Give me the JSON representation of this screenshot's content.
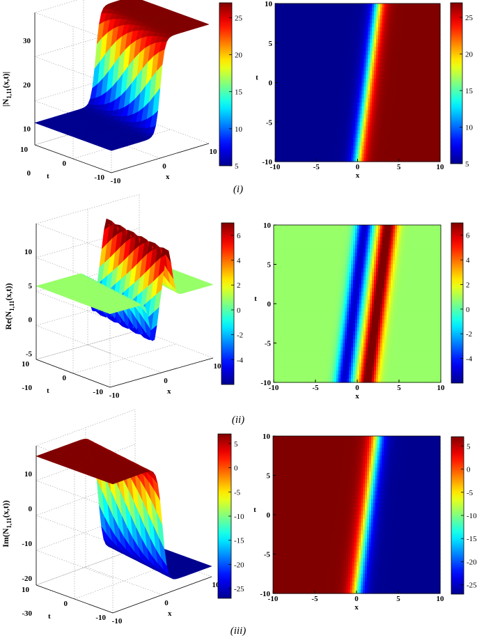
{
  "colors": {
    "jet": [
      "#00008f",
      "#0000ff",
      "#00ffff",
      "#ffff00",
      "#ff0000",
      "#800000"
    ],
    "axis": "#000000",
    "grid": "#9a9a9a"
  },
  "chart_data": [
    {
      "id": "i-surface",
      "type": "surface",
      "panel_caption": "(i)",
      "zlabel": "|N1,11(x,t)|",
      "zlabel_main": "|N",
      "zlabel_sub": "1,11",
      "zlabel_tail": "(x,t)|",
      "xlabel": "x",
      "ylabel": "t",
      "xlim": [
        -10,
        10
      ],
      "tlim": [
        -10,
        10
      ],
      "zlim": [
        0,
        30
      ],
      "zticks": [
        0,
        10,
        20,
        30
      ],
      "xticks": [
        -10,
        0,
        10
      ],
      "tticks": [
        -10,
        0,
        10
      ],
      "shape": "kink",
      "low_value": 5,
      "high_value": 27,
      "front_speed": 0.12,
      "colorbar": {
        "range": [
          5,
          27
        ],
        "ticks": [
          5,
          10,
          15,
          20,
          25
        ]
      }
    },
    {
      "id": "i-density",
      "type": "heatmap",
      "xlabel": "x",
      "ylabel": "t",
      "xlim": [
        -10,
        10
      ],
      "tlim": [
        -10,
        10
      ],
      "xticks": [
        -10,
        -5,
        0,
        5,
        10
      ],
      "tticks": [
        -10,
        -5,
        0,
        5,
        10
      ],
      "shape": "kink",
      "low_value": 5,
      "high_value": 27,
      "center_at_t_minus10": 0,
      "center_at_t_10": 2.5,
      "colorbar": {
        "range": [
          5,
          27
        ],
        "ticks": [
          5,
          10,
          15,
          20,
          25
        ]
      }
    },
    {
      "id": "ii-surface",
      "type": "surface",
      "panel_caption": "(ii)",
      "zlabel": "Re(N1,11(x,t))",
      "zlabel_main": "Re(N",
      "zlabel_sub": "1,11",
      "zlabel_tail": "(x,t))",
      "xlabel": "x",
      "ylabel": "t",
      "xlim": [
        -10,
        10
      ],
      "tlim": [
        -10,
        10
      ],
      "zlim": [
        -10,
        10
      ],
      "zticks": [
        -10,
        -5,
        0,
        5,
        10
      ],
      "xticks": [
        -10,
        0,
        10
      ],
      "tticks": [
        -10,
        0,
        10
      ],
      "shape": "bipolar",
      "background_value": 0.8,
      "peak_value": 7,
      "trough_value": -6,
      "colorbar": {
        "range": [
          -6,
          7
        ],
        "ticks": [
          -4,
          -2,
          0,
          2,
          4,
          6
        ]
      }
    },
    {
      "id": "ii-density",
      "type": "heatmap",
      "xlabel": "x",
      "ylabel": "t",
      "xlim": [
        -10,
        10
      ],
      "tlim": [
        -10,
        10
      ],
      "xticks": [
        -10,
        -5,
        0,
        5,
        10
      ],
      "tticks": [
        -10,
        -5,
        0,
        5,
        10
      ],
      "shape": "bipolar",
      "background_value": 0.8,
      "peak_value": 7,
      "trough_value": -6,
      "center_at_t_minus10": 0,
      "center_at_t_10": 2.5,
      "colorbar": {
        "range": [
          -6,
          7
        ],
        "ticks": [
          -4,
          -2,
          0,
          2,
          4,
          6
        ]
      }
    },
    {
      "id": "iii-surface",
      "type": "surface",
      "panel_caption": "(iii)",
      "zlabel": "Im(N1,11(x,t))",
      "zlabel_main": "Im(N",
      "zlabel_sub": "1,11",
      "zlabel_tail": "(x,t))",
      "xlabel": "x",
      "ylabel": "t",
      "xlim": [
        -10,
        10
      ],
      "tlim": [
        -10,
        10
      ],
      "zlim": [
        -30,
        10
      ],
      "zticks": [
        -30,
        -20,
        -10,
        0,
        10
      ],
      "xticks": [
        -10,
        0,
        10
      ],
      "tticks": [
        -10,
        0,
        10
      ],
      "shape": "antikink",
      "low_value": -27,
      "high_value": 7,
      "colorbar": {
        "range": [
          -27,
          7
        ],
        "ticks": [
          -25,
          -20,
          -15,
          -10,
          -5,
          0,
          5
        ]
      }
    },
    {
      "id": "iii-density",
      "type": "heatmap",
      "xlabel": "x",
      "ylabel": "t",
      "xlim": [
        -10,
        10
      ],
      "tlim": [
        -10,
        10
      ],
      "xticks": [
        -10,
        -5,
        0,
        5,
        10
      ],
      "tticks": [
        -10,
        -5,
        0,
        5,
        10
      ],
      "shape": "antikink",
      "low_value": -27,
      "high_value": 7,
      "center_at_t_minus10": 0,
      "center_at_t_10": 2.5,
      "colorbar": {
        "range": [
          -27,
          7
        ],
        "ticks": [
          -25,
          -20,
          -15,
          -10,
          -5,
          0,
          5
        ]
      }
    }
  ]
}
